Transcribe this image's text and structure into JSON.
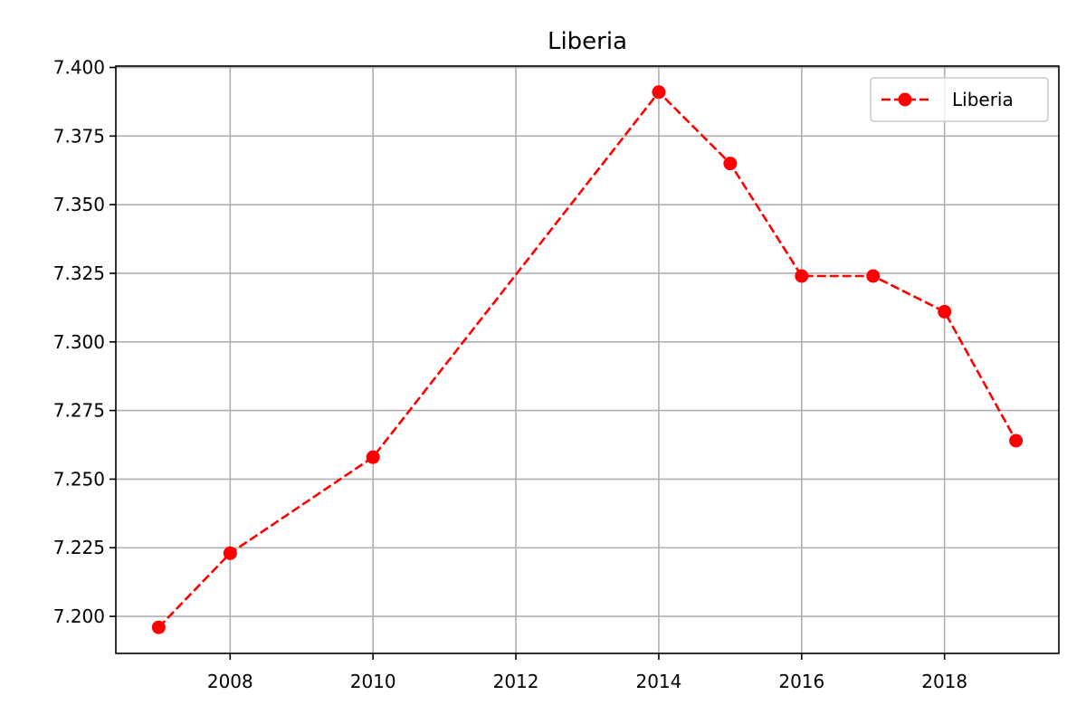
{
  "chart_data": {
    "type": "line",
    "title": "Liberia",
    "xlabel": "",
    "ylabel": "",
    "xlim": [
      2006.4,
      2019.6
    ],
    "ylim": [
      7.1865,
      7.4005
    ],
    "x_ticks": [
      2008,
      2010,
      2012,
      2014,
      2016,
      2018
    ],
    "y_ticks": [
      7.2,
      7.225,
      7.25,
      7.275,
      7.3,
      7.325,
      7.35,
      7.375,
      7.4
    ],
    "y_tick_labels": [
      "7.200",
      "7.225",
      "7.250",
      "7.275",
      "7.300",
      "7.325",
      "7.350",
      "7.375",
      "7.400"
    ],
    "grid": true,
    "legend_position": "top-right",
    "series": [
      {
        "name": "Liberia",
        "color": "#ff0000",
        "line_style": "dashed",
        "marker": "circle",
        "x": [
          2007,
          2008,
          2010,
          2014,
          2015,
          2016,
          2017,
          2018,
          2019
        ],
        "y": [
          7.196,
          7.223,
          7.258,
          7.391,
          7.365,
          7.324,
          7.324,
          7.311,
          7.264
        ]
      }
    ]
  }
}
